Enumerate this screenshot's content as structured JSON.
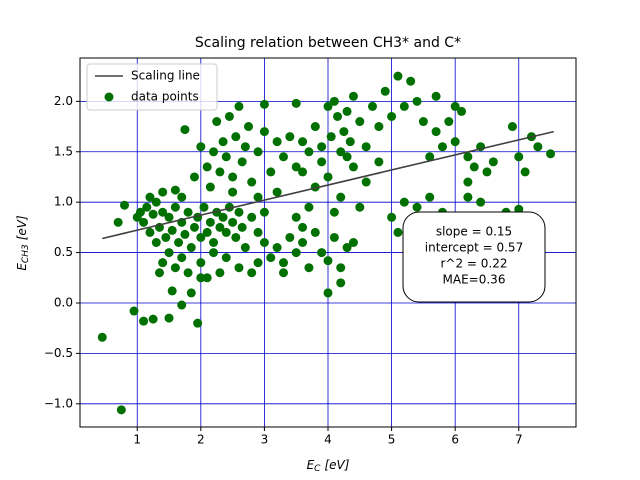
{
  "chart_data": {
    "type": "scatter",
    "title": "Scaling relation between CH3* and C*",
    "xlabel": {
      "main": "E",
      "sub": "C",
      "unit": "[eV]"
    },
    "ylabel": {
      "main": "E",
      "sub": "CH3",
      "unit": "[eV]"
    },
    "xlim": [
      0.1,
      7.9
    ],
    "ylim": [
      -1.23,
      2.43
    ],
    "xticks": [
      1,
      2,
      3,
      4,
      5,
      6,
      7
    ],
    "yticks": [
      {
        "value": -1,
        "label": "−1.0"
      },
      {
        "value": -0.5,
        "label": "−0.5"
      },
      {
        "value": 0,
        "label": "0.0"
      },
      0.5,
      {
        "value": 1,
        "label": "1.0"
      },
      1.5,
      {
        "value": 2,
        "label": "2.0"
      }
    ],
    "grid": true,
    "grid_color": "#0000cc",
    "legend": "upper left",
    "annotation": [
      "slope = 0.15",
      "intercept = 0.57",
      "r^2 = 0.22",
      "MAE=0.36"
    ],
    "series": [
      {
        "name": "Scaling line",
        "type": "line",
        "color": "#404040",
        "x": [
          0.45,
          7.55
        ],
        "values": [
          0.64,
          1.7
        ]
      },
      {
        "name": "data points",
        "type": "scatter",
        "color": "#007000",
        "x": [
          1,
          1.05,
          1.1,
          1.15,
          1.2,
          1.25,
          1.3,
          1.35,
          1.4,
          1.45,
          1.5,
          1.55,
          1.6,
          1.65,
          1.7,
          1.75,
          1.8,
          1.85,
          1.9,
          1.95,
          2.0,
          2.05,
          2.1,
          2.15,
          2.2,
          2.25,
          2.3,
          2.35,
          2.4,
          2.45,
          2.5,
          2.55,
          2.6,
          2.65,
          2.7,
          2.8,
          2.9,
          1.2,
          1.4,
          1.6,
          1.7,
          1.3,
          1.5,
          1.7,
          1.4,
          1.6,
          1.8,
          2.0,
          2.2,
          2.4,
          2.6,
          2.8,
          2.3,
          2.0,
          1.35,
          1.9,
          2.0,
          2.1,
          2.2,
          2.25,
          2.3,
          2.35,
          2.4,
          2.45,
          2.5,
          2.55,
          2.6,
          2.65,
          2.7,
          2.75,
          2.8,
          2.9,
          3.0,
          3.1,
          3.2,
          3.3,
          3.4,
          3.5,
          1.75,
          2.15,
          2.5,
          2.9,
          3.0,
          3.2,
          3.5,
          3.7,
          3.0,
          3.1,
          3.2,
          3.3,
          3.4,
          3.5,
          3.6,
          3.7,
          3.8,
          3.9,
          4.0,
          4.1,
          4.2,
          4.3,
          4.4,
          4.2,
          4.0,
          3.3,
          2.9,
          3.6,
          3.6,
          3.8,
          4.0,
          4.2,
          4.4,
          4.6,
          4.8,
          4.1,
          4.5,
          3.9,
          4.3,
          3.7,
          3.6,
          3.8,
          3.9,
          4.0,
          4.05,
          4.1,
          4.15,
          4.2,
          4.25,
          4.3,
          4.35,
          4.4,
          4.5,
          4.6,
          4.7,
          4.8,
          4.9,
          5.0,
          5.1,
          5.2,
          5.3,
          5.4,
          5.5,
          3.5,
          3.0,
          5.6,
          5.7,
          5.8,
          5.9,
          6.0,
          6.1,
          6.2,
          6.3,
          6.4,
          6.5,
          6.6,
          6.9,
          7.0,
          7.1,
          7.3,
          7.5,
          7.2,
          6.0,
          5.7,
          6.2,
          5.0,
          5.1,
          5.2,
          5.4,
          5.6,
          5.8,
          6.0,
          6.2,
          6.4,
          6.5,
          7.0,
          6.8,
          0.45,
          0.75,
          0.7,
          0.8,
          0.95,
          1.1,
          1.25,
          1.5,
          1.7,
          1.95,
          1.55,
          1.85,
          2.1
        ],
        "values": [
          0.85,
          0.9,
          0.8,
          0.95,
          0.7,
          0.88,
          1.0,
          0.75,
          0.9,
          0.65,
          0.85,
          0.72,
          0.95,
          0.6,
          0.8,
          0.68,
          0.9,
          0.55,
          0.75,
          0.85,
          0.65,
          0.95,
          0.7,
          0.8,
          0.6,
          0.9,
          0.75,
          0.85,
          0.7,
          0.95,
          0.8,
          0.65,
          0.9,
          0.75,
          0.55,
          0.85,
          0.7,
          1.05,
          1.1,
          1.12,
          1.05,
          0.6,
          0.5,
          0.45,
          0.4,
          0.35,
          0.3,
          0.4,
          0.5,
          0.45,
          0.35,
          0.3,
          0.3,
          0.25,
          0.3,
          1.25,
          1.55,
          1.35,
          1.5,
          1.8,
          1.3,
          1.6,
          1.45,
          1.85,
          1.25,
          1.65,
          1.95,
          1.4,
          1.55,
          1.75,
          1.2,
          1.5,
          1.7,
          1.3,
          1.6,
          1.45,
          1.65,
          1.35,
          1.72,
          1.15,
          1.1,
          1.05,
          0.9,
          1.1,
          0.85,
          0.95,
          0.6,
          0.45,
          0.55,
          0.4,
          0.65,
          0.5,
          0.6,
          0.35,
          0.7,
          0.5,
          0.42,
          0.65,
          0.35,
          0.55,
          0.6,
          0.2,
          0.1,
          0.3,
          0.4,
          0.75,
          1.3,
          1.15,
          1.25,
          1.05,
          1.35,
          1.2,
          1.4,
          0.9,
          0.95,
          1.4,
          1.45,
          1.5,
          1.6,
          1.75,
          1.55,
          1.95,
          1.65,
          2.0,
          1.85,
          1.5,
          1.7,
          1.9,
          1.6,
          2.05,
          1.8,
          1.55,
          1.95,
          1.75,
          2.1,
          1.85,
          2.25,
          1.95,
          2.2,
          2.0,
          1.8,
          1.98,
          1.97,
          1.45,
          1.7,
          1.55,
          1.8,
          1.6,
          1.9,
          1.45,
          1.35,
          1.55,
          1.3,
          1.4,
          1.75,
          1.45,
          1.3,
          1.55,
          1.48,
          1.65,
          1.95,
          2.05,
          1.2,
          0.85,
          0.7,
          1.0,
          0.95,
          1.05,
          0.9,
          0.8,
          1.05,
          1.0,
          0.75,
          0.93,
          0.9,
          -0.34,
          -1.06,
          0.8,
          0.97,
          -0.08,
          -0.18,
          -0.16,
          -0.15,
          -0.02,
          -0.2,
          0.12,
          0.1,
          0.25
        ]
      }
    ]
  }
}
